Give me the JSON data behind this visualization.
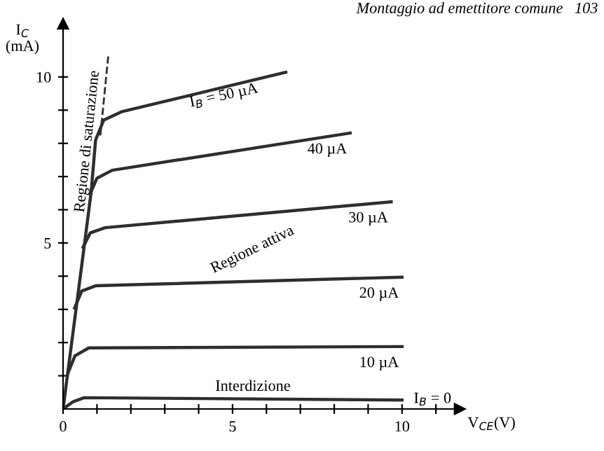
{
  "chart_data": {
    "type": "line",
    "xlabel": "V$_{CE}$(V)",
    "ylabel": "I$_{C}$\n(mA)",
    "xlim": [
      0,
      11.7
    ],
    "ylim": [
      0,
      11.6
    ],
    "xticks": [
      {
        "value": 0,
        "label": "0"
      },
      {
        "value": 1,
        "label": null
      },
      {
        "value": 2,
        "label": null
      },
      {
        "value": 3,
        "label": null
      },
      {
        "value": 4,
        "label": null
      },
      5,
      {
        "value": 6,
        "label": null
      },
      {
        "value": 7,
        "label": null
      },
      {
        "value": 8,
        "label": null
      },
      {
        "value": 9,
        "label": null
      },
      10,
      {
        "value": 11,
        "label": null
      }
    ],
    "yticks": [
      {
        "value": 1,
        "label": null
      },
      {
        "value": 2,
        "label": null
      },
      {
        "value": 3,
        "label": null
      },
      {
        "value": 4,
        "label": null
      },
      5,
      {
        "value": 6,
        "label": null
      },
      {
        "value": 7,
        "label": null
      },
      {
        "value": 8,
        "label": null
      },
      {
        "value": 9,
        "label": null
      },
      10
    ],
    "grid": false,
    "legend": false,
    "marker": "none",
    "series": [
      {
        "name": "I$_{B}$ = 50 µA",
        "color": "#2e2e2e",
        "x": [
          0,
          0.62,
          0.83,
          0.96,
          1.2,
          1.72,
          6.57
        ],
        "values": [
          0,
          4.87,
          6.55,
          8.1,
          8.7,
          8.95,
          10.14
        ]
      },
      {
        "name": "40 µA",
        "color": "#2e2e2e",
        "x": [
          0.8,
          1.0,
          1.45,
          8.47
        ],
        "values": [
          6.48,
          6.95,
          7.19,
          8.31
        ]
      },
      {
        "name": "30 µA",
        "color": "#2e2e2e",
        "x": [
          0.59,
          0.8,
          1.24,
          9.68
        ],
        "values": [
          4.87,
          5.3,
          5.46,
          6.24
        ]
      },
      {
        "name": "20 µA",
        "color": "#2e2e2e",
        "x": [
          0.34,
          0.55,
          0.96,
          10.0
        ],
        "values": [
          3.04,
          3.55,
          3.71,
          3.97
        ]
      },
      {
        "name": "10 µA",
        "color": "#2e2e2e",
        "x": [
          0.14,
          0.35,
          0.76,
          10.0
        ],
        "values": [
          1.07,
          1.6,
          1.84,
          1.88
        ]
      },
      {
        "name": "I$_{B}$ = 0",
        "color": "#2e2e2e",
        "x": [
          0,
          0.3,
          0.62,
          10.0
        ],
        "values": [
          0,
          0.22,
          0.34,
          0.27
        ]
      },
      {
        "color": "#2e2e2e",
        "line_style": "dashed",
        "x": [
          1.1,
          1.34
        ],
        "values": [
          8.24,
          10.7
        ]
      }
    ],
    "annotations": [
      "Montaggio ad emettitore comune   103",
      "Regione di saturazione",
      "Regione attiva",
      "Interdizione"
    ]
  }
}
